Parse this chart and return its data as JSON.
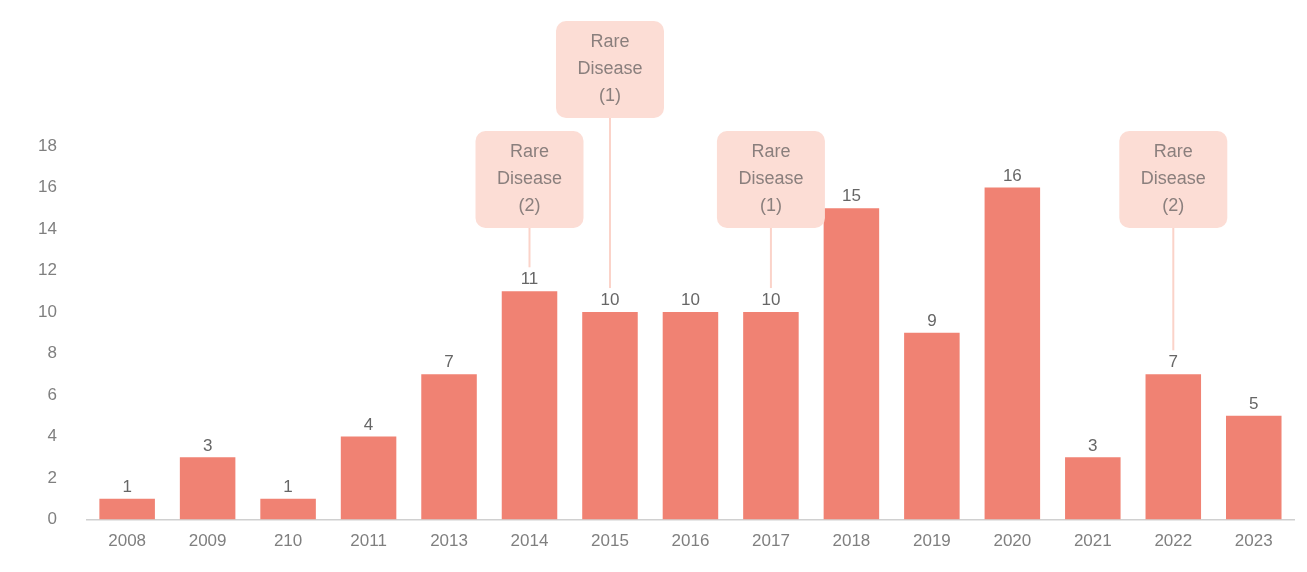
{
  "chart_data": {
    "type": "bar",
    "categories": [
      "2008",
      "2009",
      "210",
      "2011",
      "2013",
      "2014",
      "2015",
      "2016",
      "2017",
      "2018",
      "2019",
      "2020",
      "2021",
      "2022",
      "2023"
    ],
    "values": [
      1,
      3,
      1,
      4,
      7,
      11,
      10,
      10,
      10,
      15,
      9,
      16,
      3,
      7,
      5
    ],
    "color": "#f08273",
    "ylim": [
      0,
      18
    ],
    "yticks": [
      0,
      2,
      4,
      6,
      8,
      10,
      12,
      14,
      16,
      18
    ],
    "grid": false,
    "legend": false,
    "data_labels": true,
    "annotations": [
      {
        "text": "Rare Disease (2)",
        "x": "2014"
      },
      {
        "text": "Rare Disease (1)",
        "x": "2015"
      },
      {
        "text": "Rare Disease (1)",
        "x": "2017"
      },
      {
        "text": "Rare Disease (2)",
        "x": "2022"
      }
    ]
  }
}
